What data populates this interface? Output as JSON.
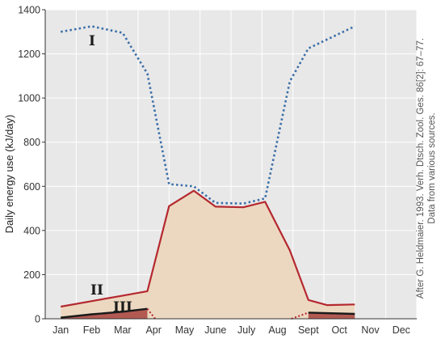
{
  "chart_data": {
    "type": "area",
    "ylabel": "Daily energy use (kJ/day)",
    "xlabel": "",
    "ylim": [
      0,
      1400
    ],
    "yticks": [
      "0",
      "200",
      "400",
      "600",
      "800",
      "1000",
      "1200",
      "1400"
    ],
    "categories": [
      "Jan",
      "Feb",
      "Mar",
      "Apr",
      "May",
      "June",
      "July",
      "Aug",
      "Sept",
      "Oct",
      "Nov",
      "Dec"
    ],
    "grid": true,
    "series": [
      {
        "name": "I",
        "style": "dotted",
        "color": "#3a6ea8",
        "points": [
          [
            0.0,
            1300
          ],
          [
            1.0,
            1325
          ],
          [
            2.0,
            1295
          ],
          [
            2.8,
            1110
          ],
          [
            3.5,
            610
          ],
          [
            4.3,
            600
          ],
          [
            5.0,
            525
          ],
          [
            5.9,
            522
          ],
          [
            6.6,
            545
          ],
          [
            7.4,
            1075
          ],
          [
            8.0,
            1225
          ],
          [
            9.5,
            1325
          ]
        ]
      },
      {
        "name": "II",
        "style": "solid",
        "color": "#b5282f",
        "fill": "#ecd8c0",
        "points": [
          [
            0.0,
            55
          ],
          [
            1.0,
            80
          ],
          [
            2.0,
            105
          ],
          [
            2.8,
            125
          ],
          [
            3.5,
            510
          ],
          [
            4.3,
            580
          ],
          [
            5.0,
            508
          ],
          [
            5.9,
            505
          ],
          [
            6.6,
            530
          ],
          [
            7.4,
            310
          ],
          [
            8.0,
            85
          ],
          [
            8.6,
            62
          ],
          [
            9.5,
            65
          ]
        ]
      },
      {
        "name": "III",
        "style": "solid",
        "color": "#1a1a1a",
        "fill": "#a8443e",
        "points": [
          [
            0.0,
            5
          ],
          [
            1.0,
            20
          ],
          [
            2.0,
            32
          ],
          [
            2.8,
            45
          ]
        ],
        "points_late": [
          [
            8.0,
            28
          ],
          [
            9.5,
            22
          ]
        ],
        "dropoffs": [
          [
            [
              2.8,
              45
            ],
            [
              3.05,
              0
            ]
          ],
          [
            [
              7.45,
              0
            ],
            [
              8.0,
              28
            ]
          ]
        ]
      }
    ],
    "credit_line1": "After G. Heldmaier. 1993. Verh. Dtsch. Zool. Ges. 86[2]: 67–77.",
    "credit_line2": "Data from various sources."
  }
}
